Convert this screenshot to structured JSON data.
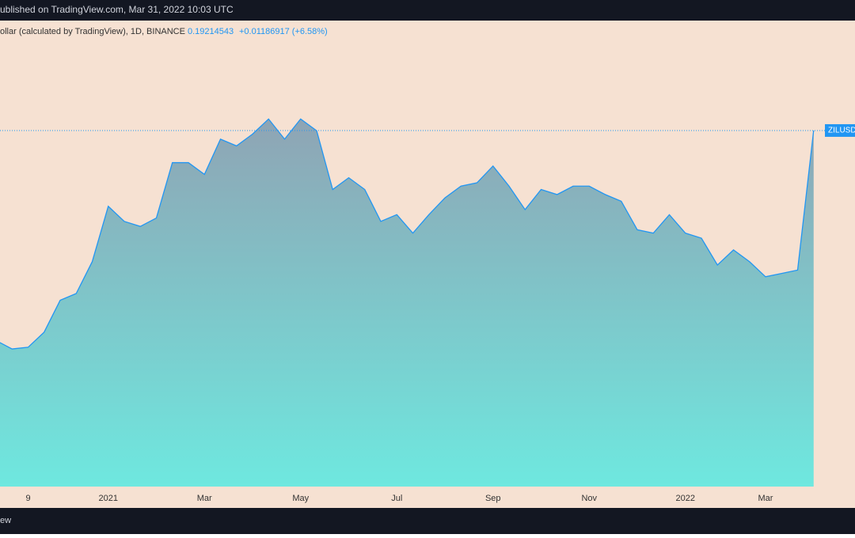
{
  "header": {
    "published": "ublished on TradingView.com, Mar 31, 2022 10:03 UTC"
  },
  "legend": {
    "symbol": "ollar (calculated by TradingView), 1D, BINANCE",
    "last": 0.19214543,
    "change": "+0.01186917 (+6.58%)"
  },
  "footer": {
    "brand": "ew"
  },
  "chart_data": {
    "type": "area",
    "price_tag": "ZILUSD",
    "categories": [
      null,
      null,
      "9",
      null,
      null,
      null,
      null,
      "2021",
      null,
      null,
      null,
      null,
      null,
      "Mar",
      null,
      null,
      null,
      null,
      null,
      "May",
      null,
      null,
      null,
      null,
      null,
      "Jul",
      null,
      null,
      null,
      null,
      null,
      "Sep",
      null,
      null,
      null,
      null,
      null,
      "Nov",
      null,
      null,
      null,
      null,
      null,
      "2022",
      null,
      null,
      null,
      null,
      "Mar",
      null,
      null,
      null
    ],
    "series": [
      {
        "name": "ZILUSD",
        "color": "#2196f3",
        "values": [
          0.067,
          0.062,
          0.063,
          0.072,
          0.091,
          0.095,
          0.114,
          0.147,
          0.138,
          0.135,
          0.14,
          0.173,
          0.173,
          0.166,
          0.187,
          0.183,
          0.19,
          0.199,
          0.187,
          0.199,
          0.192,
          0.157,
          0.164,
          0.157,
          0.138,
          0.142,
          0.131,
          0.142,
          0.152,
          0.159,
          0.161,
          0.171,
          0.159,
          0.145,
          0.157,
          0.154,
          0.159,
          0.159,
          0.154,
          0.15,
          0.133,
          0.131,
          0.142,
          0.131,
          0.128,
          0.112,
          0.121,
          0.114,
          0.105,
          0.107,
          0.109,
          0.19214543
        ]
      }
    ],
    "ylim": [
      -0.02,
      0.26
    ]
  }
}
